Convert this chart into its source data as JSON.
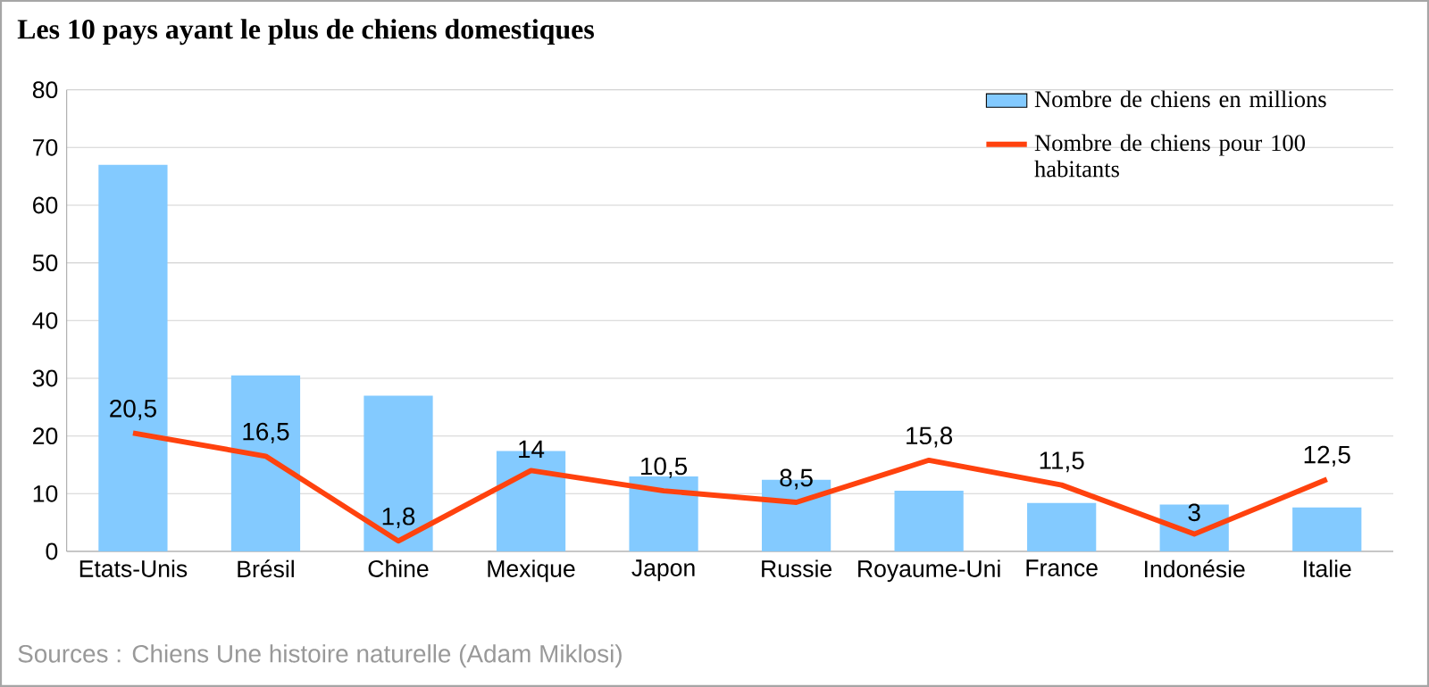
{
  "chart_data": {
    "type": "bar",
    "title": "Les 10 pays ayant le plus de chiens domestiques",
    "categories": [
      "Etats-Unis",
      "Brésil",
      "Chine",
      "Mexique",
      "Japon",
      "Russie",
      "Royaume-Uni",
      "France",
      "Indonésie",
      "Italie"
    ],
    "series": [
      {
        "name": "Nombre de chiens en millions",
        "color": "#83caff",
        "values": [
          67,
          30.5,
          27,
          17.4,
          13,
          12.4,
          10.5,
          8.4,
          8.1,
          7.6
        ]
      },
      {
        "name": "Nombre de chiens pour 100 habitants",
        "type": "line",
        "color": "#ff420e",
        "values": [
          20.5,
          16.5,
          1.8,
          14,
          10.5,
          8.5,
          15.8,
          11.5,
          3,
          12.5
        ],
        "value_labels": [
          "20,5",
          "16,5",
          "1,8",
          "14",
          "10,5",
          "8,5",
          "15,8",
          "11,5",
          "3",
          "12,5"
        ]
      }
    ],
    "ylim": [
      0,
      80
    ],
    "yticks": [
      0,
      10,
      20,
      30,
      40,
      50,
      60,
      70,
      80
    ],
    "grid": "y",
    "legend": "top right",
    "annotations": [
      "Sources : Chiens Une histoire naturelle (Adam Miklosi)"
    ]
  }
}
